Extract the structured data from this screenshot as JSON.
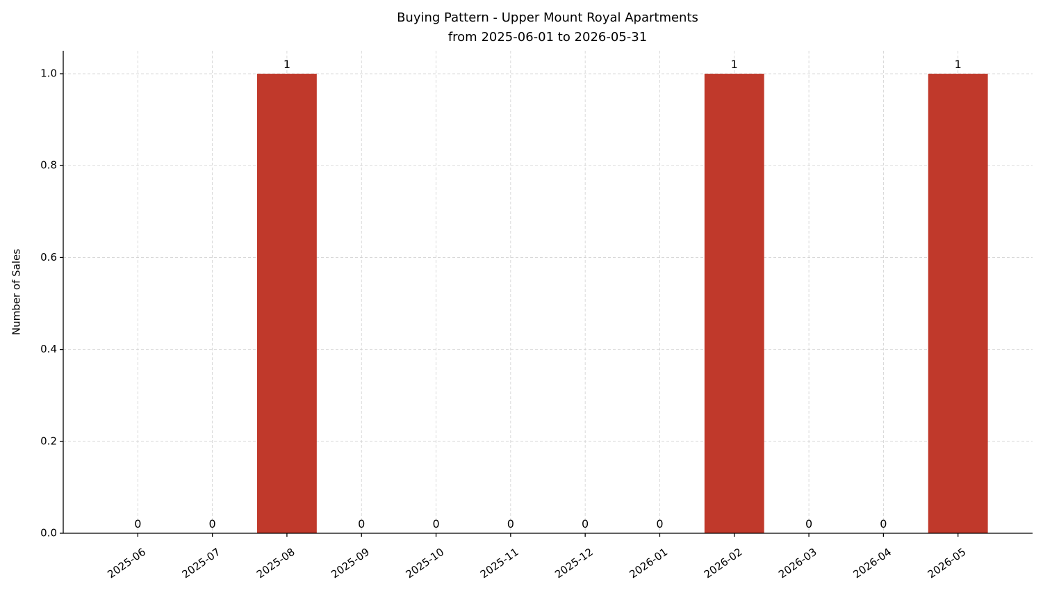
{
  "chart_data": {
    "type": "bar",
    "title": "Buying Pattern - Upper Mount Royal Apartments",
    "subtitle": "from 2025-06-01 to 2026-05-31",
    "y_label": "Number of Sales",
    "categories": [
      "2025-06",
      "2025-07",
      "2025-08",
      "2025-09",
      "2025-10",
      "2025-11",
      "2025-12",
      "2026-01",
      "2026-02",
      "2026-03",
      "2026-04",
      "2026-05"
    ],
    "values": [
      0,
      0,
      1,
      0,
      0,
      0,
      0,
      0,
      1,
      0,
      0,
      1
    ],
    "color": "#c0392b",
    "ylim": [
      0,
      1.05
    ],
    "yticks": [
      {
        "value": 0,
        "label": "0.0"
      },
      {
        "value": 0.2,
        "label": "0.2"
      },
      {
        "value": 0.4,
        "label": "0.4"
      },
      {
        "value": 0.6,
        "label": "0.6"
      },
      {
        "value": 0.8,
        "label": "0.8"
      },
      {
        "value": 1,
        "label": "1.0"
      }
    ],
    "grid": true
  }
}
